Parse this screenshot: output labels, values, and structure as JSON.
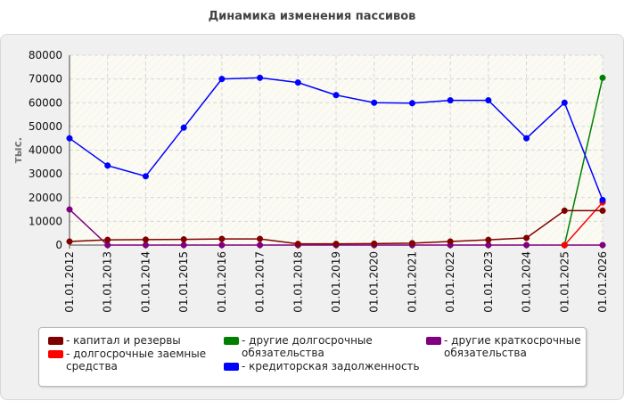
{
  "chart_data": {
    "type": "line",
    "title": "Динамика изменения пассивов",
    "ylabel": "тыс.",
    "xlabel": "",
    "ylim": [
      0,
      80000
    ],
    "yticks": [
      0,
      10000,
      20000,
      30000,
      40000,
      50000,
      60000,
      70000,
      80000
    ],
    "categories": [
      "01.01.2012",
      "01.01.2013",
      "01.01.2014",
      "01.01.2015",
      "01.01.2016",
      "01.01.2017",
      "01.01.2018",
      "01.01.2019",
      "01.01.2020",
      "01.01.2021",
      "01.01.2022",
      "01.01.2023",
      "01.01.2024",
      "01.01.2025",
      "01.01.2026"
    ],
    "grid": true,
    "legend_position": "bottom",
    "series": [
      {
        "name": "- капитал и резервы",
        "color": "#800000",
        "values": [
          1500,
          2200,
          2300,
          2400,
          2600,
          2600,
          500,
          500,
          600,
          800,
          1500,
          2200,
          3000,
          14500,
          14500
        ]
      },
      {
        "name": "- долгосрочные заемные средства",
        "color": "#ff0000",
        "values": [
          null,
          null,
          null,
          null,
          null,
          null,
          null,
          null,
          null,
          null,
          null,
          null,
          null,
          0,
          18000
        ]
      },
      {
        "name": "- другие долгосрочные обязательства",
        "color": "#008000",
        "values": [
          null,
          null,
          null,
          null,
          null,
          null,
          null,
          null,
          null,
          null,
          null,
          null,
          null,
          0,
          70500
        ]
      },
      {
        "name": "- кредиторская задолженность",
        "color": "#0000ff",
        "values": [
          45000,
          33500,
          29000,
          49500,
          70000,
          70500,
          68500,
          63200,
          60000,
          59800,
          61000,
          61000,
          45000,
          60000,
          19000
        ]
      },
      {
        "name": "- другие краткосрочные обязательства",
        "color": "#800080",
        "values": [
          15000,
          0,
          0,
          0,
          0,
          0,
          0,
          0,
          0,
          0,
          0,
          0,
          0,
          0,
          0
        ]
      }
    ]
  }
}
